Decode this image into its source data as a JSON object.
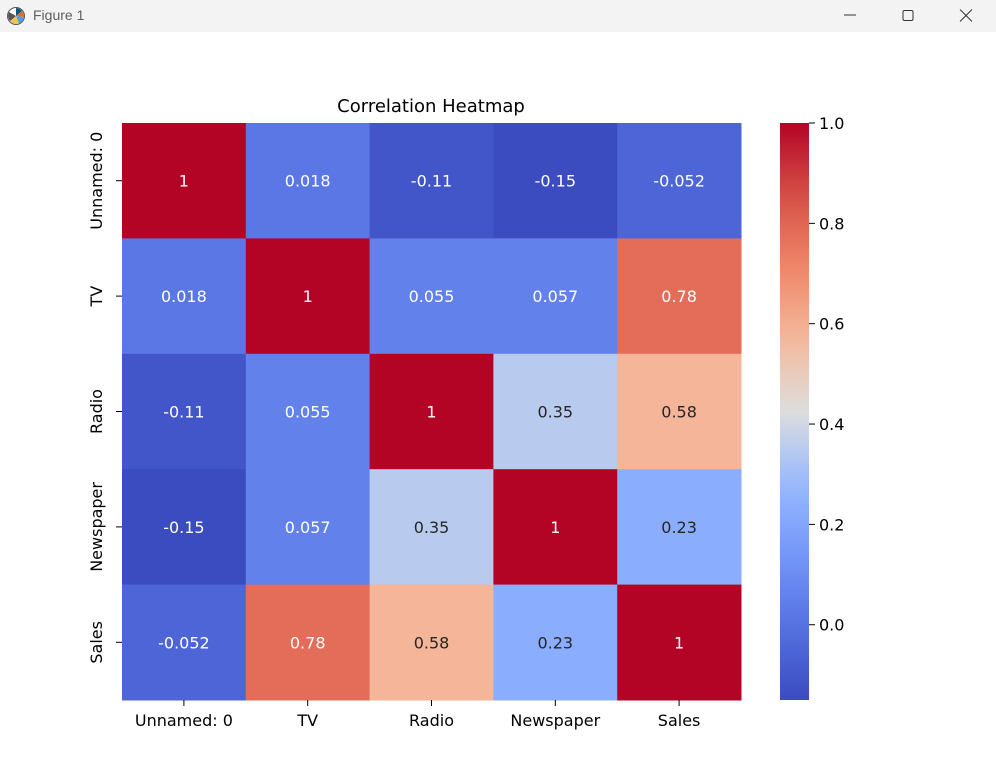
{
  "window": {
    "title": "Figure 1",
    "app_icon": "matplotlib-icon",
    "controls": [
      "minimize-icon",
      "maximize-icon",
      "close-icon"
    ]
  },
  "chart_data": {
    "type": "heatmap",
    "title": "Correlation Heatmap",
    "x_categories": [
      "Unnamed: 0",
      "TV",
      "Radio",
      "Newspaper",
      "Sales"
    ],
    "y_categories": [
      "Unnamed: 0",
      "TV",
      "Radio",
      "Newspaper",
      "Sales"
    ],
    "values": [
      [
        1,
        0.018,
        -0.11,
        -0.15,
        -0.052
      ],
      [
        0.018,
        1,
        0.055,
        0.057,
        0.78
      ],
      [
        -0.11,
        0.055,
        1,
        0.35,
        0.58
      ],
      [
        -0.15,
        0.057,
        0.35,
        1,
        0.23
      ],
      [
        -0.052,
        0.78,
        0.58,
        0.23,
        1
      ]
    ],
    "annotations": [
      [
        "1",
        "0.018",
        "-0.11",
        "-0.15",
        "-0.052"
      ],
      [
        "0.018",
        "1",
        "0.055",
        "0.057",
        "0.78"
      ],
      [
        "-0.11",
        "0.055",
        "1",
        "0.35",
        "0.58"
      ],
      [
        "-0.15",
        "0.057",
        "0.35",
        "1",
        "0.23"
      ],
      [
        "-0.052",
        "0.78",
        "0.58",
        "0.23",
        "1"
      ]
    ],
    "colormap": "coolwarm",
    "colorbar": {
      "range": [
        -0.15,
        1.0
      ],
      "ticks": [
        0.0,
        0.2,
        0.4,
        0.6,
        0.8,
        1.0
      ],
      "tick_labels": [
        "0.0",
        "0.2",
        "0.4",
        "0.6",
        "0.8",
        "1.0"
      ]
    }
  }
}
